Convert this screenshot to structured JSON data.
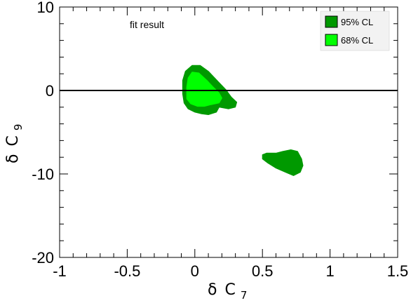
{
  "chart_data": {
    "type": "contour",
    "xlabel_symbol": "δ",
    "xlabel_main": "C",
    "xlabel_sub": "7",
    "ylabel_symbol": "δ",
    "ylabel_main": "C",
    "ylabel_sub": "9",
    "xlim": [
      -1,
      1.5
    ],
    "ylim": [
      -20,
      10
    ],
    "x_ticks": [
      -1,
      -0.5,
      0,
      0.5,
      1,
      1.5
    ],
    "x_tick_labels": [
      "-1",
      "-0.5",
      "0",
      "0.5",
      "1",
      "1.5"
    ],
    "y_ticks": [
      -20,
      -10,
      0,
      10
    ],
    "y_tick_labels": [
      "-20",
      "-10",
      "0",
      "10"
    ],
    "reference_line_y": 0,
    "annotation": "fit result",
    "legend": {
      "placement": "top-right",
      "entries": [
        {
          "label": "95% CL",
          "color": "#009900"
        },
        {
          "label": "68% CL",
          "color": "#00ff00"
        }
      ]
    },
    "regions": [
      {
        "level": "95% CL",
        "color": "#009900",
        "points": [
          [
            -0.09,
            -0.4
          ],
          [
            -0.09,
            1.2
          ],
          [
            -0.07,
            2.3
          ],
          [
            -0.02,
            3.0
          ],
          [
            0.04,
            3.0
          ],
          [
            0.1,
            2.3
          ],
          [
            0.17,
            1.1
          ],
          [
            0.23,
            0.1
          ],
          [
            0.27,
            -0.8
          ],
          [
            0.31,
            -1.4
          ],
          [
            0.3,
            -2.0
          ],
          [
            0.25,
            -2.2
          ],
          [
            0.18,
            -2.0
          ],
          [
            0.16,
            -2.6
          ],
          [
            0.1,
            -2.9
          ],
          [
            0.05,
            -2.8
          ],
          [
            0.0,
            -2.6
          ],
          [
            -0.05,
            -2.2
          ],
          [
            -0.08,
            -1.5
          ]
        ]
      },
      {
        "level": "95% CL",
        "color": "#009900",
        "points": [
          [
            0.5,
            -7.7
          ],
          [
            0.53,
            -7.5
          ],
          [
            0.6,
            -7.5
          ],
          [
            0.65,
            -7.3
          ],
          [
            0.71,
            -7.1
          ],
          [
            0.76,
            -7.3
          ],
          [
            0.79,
            -8.2
          ],
          [
            0.8,
            -9.0
          ],
          [
            0.78,
            -9.8
          ],
          [
            0.73,
            -10.2
          ],
          [
            0.67,
            -9.8
          ],
          [
            0.6,
            -9.3
          ],
          [
            0.54,
            -8.7
          ],
          [
            0.5,
            -8.2
          ]
        ]
      },
      {
        "level": "68% CL",
        "color": "#00ff00",
        "points": [
          [
            -0.06,
            -1.0
          ],
          [
            -0.06,
            0.4
          ],
          [
            -0.05,
            1.5
          ],
          [
            -0.02,
            2.2
          ],
          [
            0.03,
            2.1
          ],
          [
            0.09,
            1.2
          ],
          [
            0.13,
            0.5
          ],
          [
            0.18,
            -0.3
          ],
          [
            0.2,
            -0.9
          ],
          [
            0.18,
            -1.5
          ],
          [
            0.12,
            -1.7
          ],
          [
            0.07,
            -1.9
          ],
          [
            0.02,
            -1.9
          ],
          [
            -0.03,
            -1.6
          ]
        ]
      }
    ]
  }
}
